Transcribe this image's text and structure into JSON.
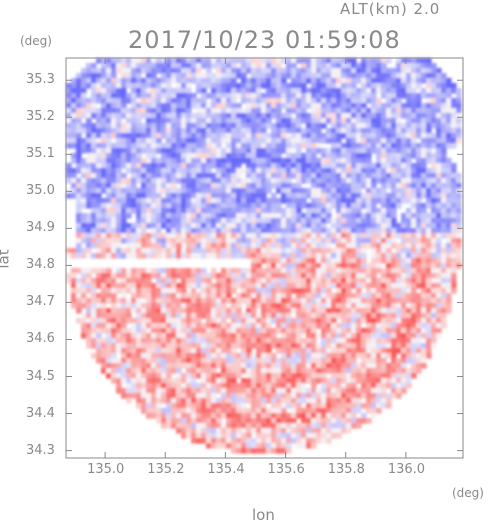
{
  "header": {
    "altitude": "ALT(km)  2.0",
    "timestamp": "2017/10/23 01:59:08"
  },
  "axes": {
    "y_unit": "(deg)",
    "x_unit": "(deg)",
    "x_title": "lon",
    "y_title": "lat"
  },
  "chart_data": {
    "type": "heatmap",
    "xlabel": "lon",
    "ylabel": "lat",
    "xlim": [
      134.87,
      136.19
    ],
    "ylim": [
      34.28,
      35.36
    ],
    "x_ticks": [
      "135.0",
      "135.2",
      "135.4",
      "135.6",
      "135.8",
      "136.0"
    ],
    "y_ticks": [
      "35.3",
      "35.2",
      "35.1",
      "35.0",
      "34.9",
      "34.8",
      "34.7",
      "34.6",
      "34.5",
      "34.4",
      "34.3"
    ],
    "radar_center": [
      135.52,
      34.82
    ],
    "colors": {
      "positive": "#f08080",
      "negative": "#8080f0",
      "frame": "#888888"
    }
  }
}
